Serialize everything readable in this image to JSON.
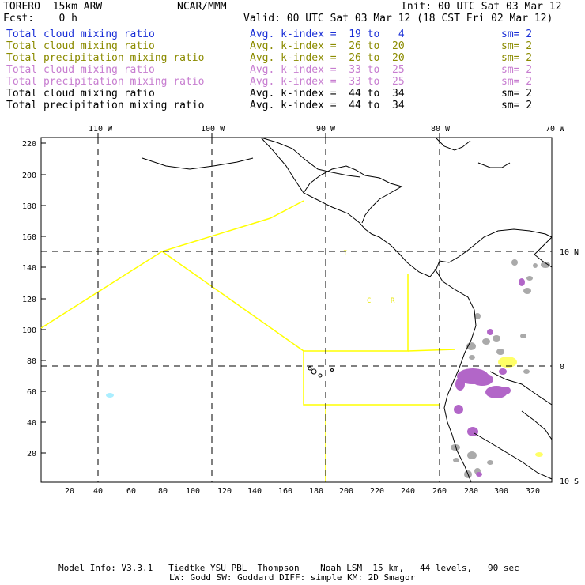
{
  "header": {
    "model": "TORERO  15km ARW",
    "center": "NCAR/MMM",
    "init": "Init: 00 UTC Sat 03 Mar 12",
    "fcst": "Fcst:    0 h",
    "valid": "Valid: 00 UTC Sat 03 Mar 12 (18 CST Fri 02 Mar 12)"
  },
  "legend": [
    {
      "field": "Total cloud mixing ratio",
      "kindex": "Avg. k-index =  19 to   4",
      "sm": "sm= 2",
      "color": "#1a2fd6"
    },
    {
      "field": "Total cloud mixing ratio",
      "kindex": "Avg. k-index =  26 to  20",
      "sm": "sm= 2",
      "color": "#8b8b00"
    },
    {
      "field": "Total precipitation mixing ratio",
      "kindex": "Avg. k-index =  26 to  20",
      "sm": "sm= 2",
      "color": "#8b8b00"
    },
    {
      "field": "Total cloud mixing ratio",
      "kindex": "Avg. k-index =  33 to  25",
      "sm": "sm= 2",
      "color": "#c77dd0"
    },
    {
      "field": "Total precipitation mixing ratio",
      "kindex": "Avg. k-index =  33 to  25",
      "sm": "sm= 2",
      "color": "#c77dd0"
    },
    {
      "field": "Total cloud mixing ratio",
      "kindex": "Avg. k-index =  44 to  34",
      "sm": "sm= 2",
      "color": "#000000"
    },
    {
      "field": "Total precipitation mixing ratio",
      "kindex": "Avg. k-index =  44 to  34",
      "sm": "sm= 2",
      "color": "#000000"
    }
  ],
  "map": {
    "lon_labels": [
      "110 W",
      "100 W",
      "90 W",
      "80 W",
      "70 W"
    ],
    "lat_labels": [
      "10 N",
      "0",
      "10 S"
    ],
    "x_ticks": [
      "20",
      "40",
      "60",
      "80",
      "100",
      "120",
      "140",
      "160",
      "180",
      "200",
      "220",
      "240",
      "260",
      "280",
      "300",
      "320"
    ],
    "y_ticks": [
      "220",
      "200",
      "180",
      "160",
      "140",
      "120",
      "100",
      "80",
      "60",
      "40",
      "20"
    ],
    "region_labels": [
      "C",
      "R",
      "I"
    ],
    "colors": {
      "boundary": "#ffff00",
      "cloud_gray": "#aaaaaa",
      "precip_purple": "#b266c8",
      "cloud_yellow": "#ffff66",
      "cyan": "#aaeeff"
    }
  },
  "footer": {
    "line1": "Model Info: V3.3.1   Tiedtke YSU PBL  Thompson    Noah LSM  15 km,   44 levels,   90 sec",
    "line2": "LW: Godd SW: Goddard DIFF: simple KM: 2D Smagor"
  }
}
